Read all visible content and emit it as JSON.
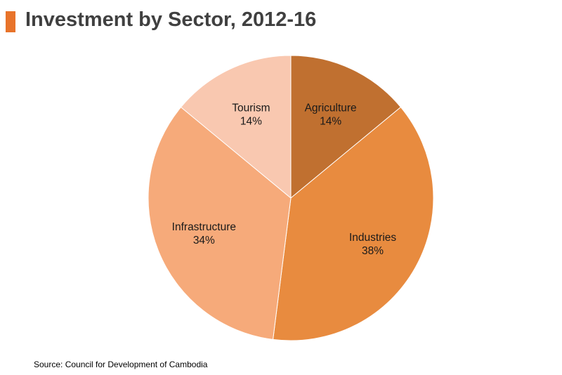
{
  "page": {
    "title": "Investment by Sector, 2012-16",
    "source": "Source: Council for Development of Cambodia",
    "accent_color": "#e8732a"
  },
  "chart_data": {
    "type": "pie",
    "title": "Investment by Sector, 2012-16",
    "slices": [
      {
        "label": "Agriculture",
        "value": 14,
        "value_label": "14%",
        "color": "#c07030"
      },
      {
        "label": "Industries",
        "value": 38,
        "value_label": "38%",
        "color": "#e88b3f"
      },
      {
        "label": "Infrastructure",
        "value": 34,
        "value_label": "34%",
        "color": "#f6aa7a"
      },
      {
        "label": "Tourism",
        "value": 14,
        "value_label": "14%",
        "color": "#f9c8b0"
      }
    ],
    "start": "12 o'clock",
    "direction": "clockwise",
    "legend": "none",
    "labels": "inside slices"
  }
}
